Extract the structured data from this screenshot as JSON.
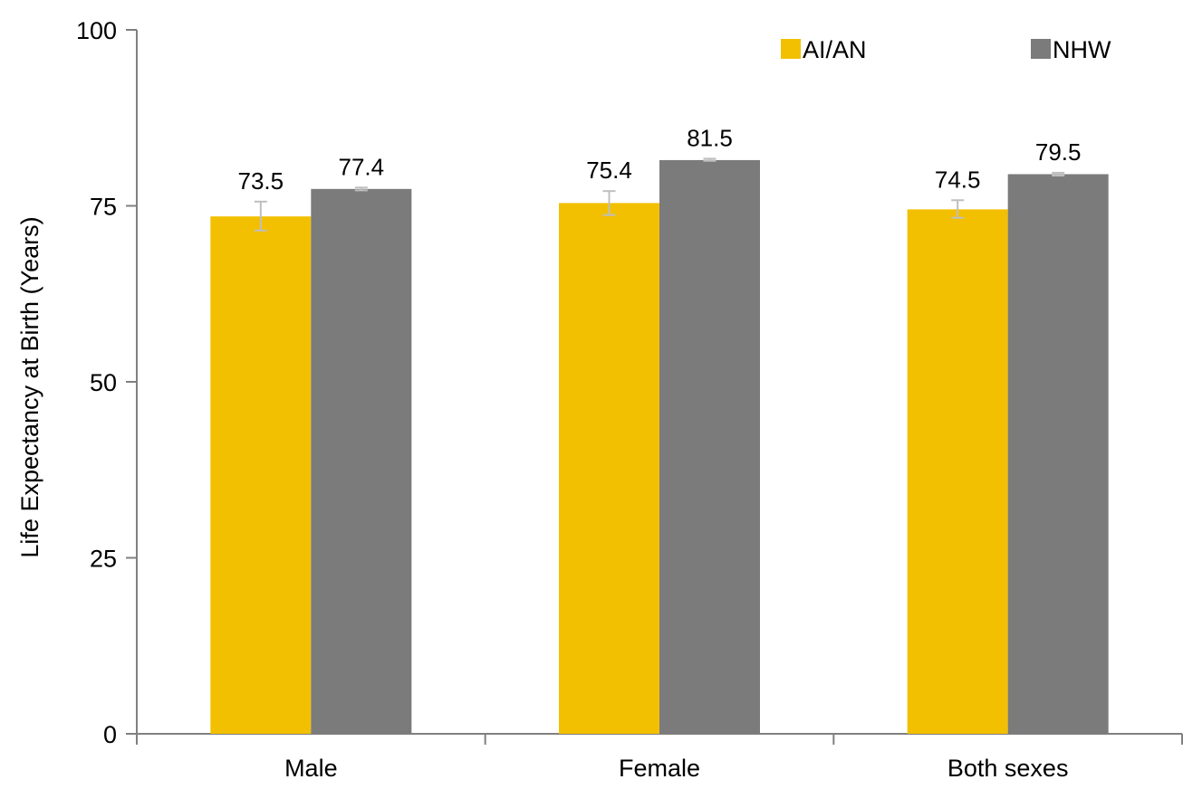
{
  "chart_data": {
    "type": "bar",
    "title": "",
    "xlabel": "",
    "ylabel": "Life Expectancy at Birth (Years)",
    "ylim": [
      0,
      100
    ],
    "yticks": [
      0,
      25,
      50,
      75,
      100
    ],
    "grid": false,
    "legend_position": "top-right",
    "categories": [
      "Male",
      "Female",
      "Both sexes"
    ],
    "series": [
      {
        "name": "AI/AN",
        "color": "#F2C000",
        "values": [
          73.5,
          75.4,
          74.5
        ],
        "error_low": [
          71.5,
          73.7,
          73.3
        ],
        "error_high": [
          75.6,
          77.1,
          75.8
        ],
        "labels": [
          "73.5",
          "75.4",
          "74.5"
        ]
      },
      {
        "name": "NHW",
        "color": "#7B7B7B",
        "values": [
          77.4,
          81.5,
          79.5
        ],
        "error_low": [
          77.2,
          81.4,
          79.3
        ],
        "error_high": [
          77.6,
          81.7,
          79.7
        ],
        "labels": [
          "77.4",
          "81.5",
          "79.5"
        ]
      }
    ],
    "axis_color": "#808080",
    "error_bar_color": "#BFBFBF"
  }
}
